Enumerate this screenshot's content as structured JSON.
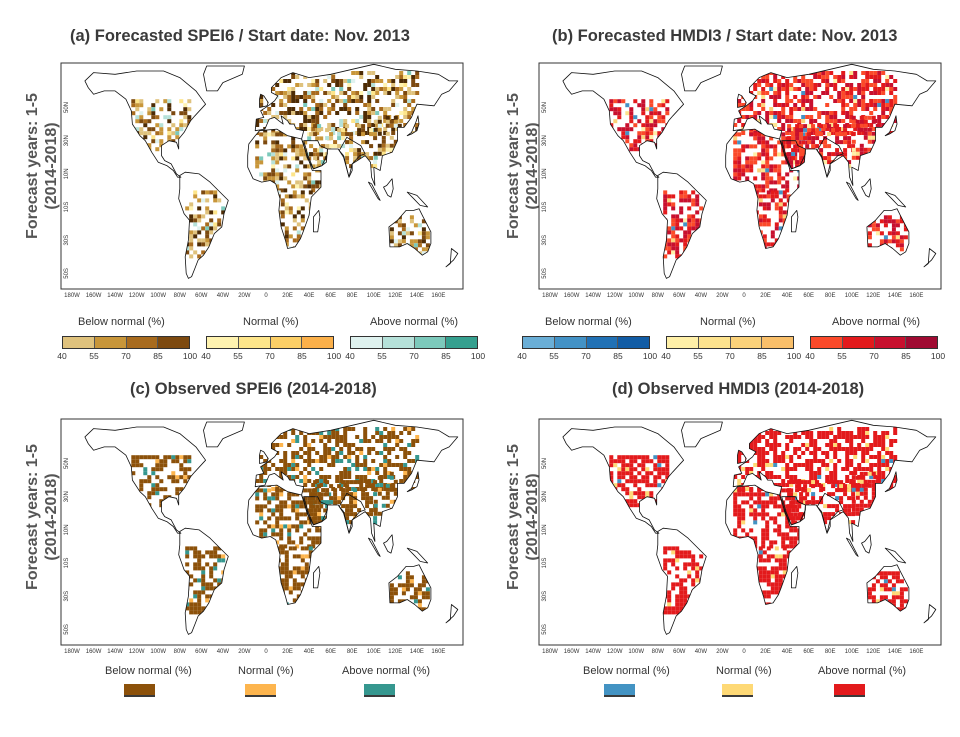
{
  "panels": [
    {
      "id": "a",
      "title": "(a) Forecasted SPEI6 / Start date: Nov. 2013",
      "variable": "SPEI6",
      "scheme": "spei",
      "categories": [
        "Below normal (%)",
        "Normal (%)",
        "Above normal (%)"
      ]
    },
    {
      "id": "b",
      "title": "(b) Forecasted HMDI3 / Start date: Nov. 2013",
      "variable": "HMDI3",
      "scheme": "hmdi",
      "categories": [
        "Below normal (%)",
        "Normal (%)",
        "Above normal (%)"
      ]
    },
    {
      "id": "c",
      "title": "(c) Observed SPEI6 (2014-2018)",
      "variable": "SPEI6",
      "scheme": "spei",
      "categories": [
        "Below normal (%)",
        "Normal (%)",
        "Above normal (%)"
      ]
    },
    {
      "id": "d",
      "title": "(d) Observed HMDI3 (2014-2018)",
      "variable": "HMDI3",
      "scheme": "hmdi",
      "categories": [
        "Below normal (%)",
        "Normal (%)",
        "Above normal (%)"
      ]
    }
  ],
  "row_label": {
    "line1": "Forecast years: 1-5",
    "line2": "(2014-2018)"
  },
  "lon_ticks": [
    "180W",
    "160W",
    "140W",
    "120W",
    "100W",
    "80W",
    "60W",
    "40W",
    "20W",
    "0",
    "20E",
    "40E",
    "60E",
    "80E",
    "100E",
    "120E",
    "140E",
    "160E"
  ],
  "lat_ticks": [
    "50N",
    "30N",
    "10N",
    "10S",
    "30S",
    "50S"
  ],
  "colorbar_ticks": [
    "40",
    "55",
    "70",
    "85",
    "100"
  ],
  "colors": {
    "spei": {
      "below": [
        "#dfc27d",
        "#c8963a",
        "#a86b1e",
        "#7d4a10",
        "#4e2c05"
      ],
      "normal": [
        "#fff3b0",
        "#fde58a",
        "#fccf66",
        "#fbb04a",
        "#f8893a"
      ],
      "above": [
        "#dff2ef",
        "#b5e1d9",
        "#7cc9bb",
        "#35a08f",
        "#006b5b"
      ],
      "observed": {
        "below": "#8c510a",
        "normal": "#fdb54e",
        "above": "#35978f"
      }
    },
    "hmdi": {
      "below": [
        "#6aaed6",
        "#4392c6",
        "#2171b5",
        "#115ca5",
        "#08306b"
      ],
      "normal": [
        "#fff0a8",
        "#fde38e",
        "#fbd27a",
        "#f9bf6a",
        "#f7aa5c"
      ],
      "above": [
        "#fb4a2a",
        "#e31a1c",
        "#c8102e",
        "#a00a32",
        "#7a0030"
      ],
      "observed": {
        "below": "#4393c3",
        "normal": "#fed976",
        "above": "#e31a1c"
      }
    }
  }
}
